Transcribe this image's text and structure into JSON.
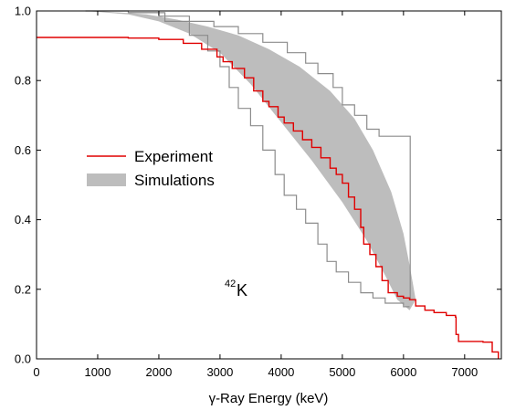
{
  "chart_data": {
    "type": "line",
    "title": "",
    "xlabel": "γ-Ray Energy (keV)",
    "ylabel": "",
    "xlim": [
      0,
      7600
    ],
    "ylim": [
      0,
      1.0
    ],
    "x_ticks": [
      0,
      1000,
      2000,
      3000,
      4000,
      5000,
      6000,
      7000
    ],
    "y_ticks": [
      0.0,
      0.2,
      0.4,
      0.6,
      0.8,
      1.0
    ],
    "x_tick_labels": [
      "0",
      "1000",
      "2000",
      "3000",
      "4000",
      "5000",
      "6000",
      "7000"
    ],
    "y_tick_labels": [
      "0.0",
      "0.2",
      "0.4",
      "0.6",
      "0.8",
      "1.0"
    ],
    "grid": false,
    "legend": {
      "position": "center-left",
      "entries": [
        {
          "label": "Experiment",
          "style": "line",
          "color": "#e00000"
        },
        {
          "label": "Simulations",
          "style": "band",
          "color": "#bdbdbd"
        }
      ]
    },
    "annotation": {
      "mass_number": "42",
      "element": "K",
      "x": 3500,
      "y": 0.2
    },
    "colors": {
      "experiment": "#e00000",
      "band_fill": "#bdbdbd",
      "outer_bounds": "#8c8c8c",
      "axes": "#000000"
    },
    "series": [
      {
        "name": "Experiment",
        "kind": "step",
        "points": [
          [
            0,
            0.924
          ],
          [
            1000,
            0.924
          ],
          [
            1500,
            0.922
          ],
          [
            2000,
            0.918
          ],
          [
            2400,
            0.907
          ],
          [
            2700,
            0.89
          ],
          [
            2950,
            0.868
          ],
          [
            3050,
            0.854
          ],
          [
            3200,
            0.835
          ],
          [
            3400,
            0.808
          ],
          [
            3550,
            0.77
          ],
          [
            3700,
            0.74
          ],
          [
            3800,
            0.725
          ],
          [
            3950,
            0.695
          ],
          [
            4050,
            0.678
          ],
          [
            4200,
            0.655
          ],
          [
            4350,
            0.63
          ],
          [
            4500,
            0.608
          ],
          [
            4650,
            0.578
          ],
          [
            4800,
            0.548
          ],
          [
            4900,
            0.53
          ],
          [
            5000,
            0.505
          ],
          [
            5100,
            0.465
          ],
          [
            5200,
            0.43
          ],
          [
            5300,
            0.378
          ],
          [
            5350,
            0.33
          ],
          [
            5450,
            0.3
          ],
          [
            5550,
            0.265
          ],
          [
            5650,
            0.225
          ],
          [
            5750,
            0.19
          ],
          [
            5900,
            0.18
          ],
          [
            6000,
            0.175
          ],
          [
            6100,
            0.17
          ],
          [
            6200,
            0.152
          ],
          [
            6350,
            0.14
          ],
          [
            6500,
            0.133
          ],
          [
            6700,
            0.125
          ],
          [
            6850,
            0.12
          ],
          [
            6860,
            0.07
          ],
          [
            6900,
            0.05
          ],
          [
            7300,
            0.048
          ],
          [
            7450,
            0.02
          ],
          [
            7550,
            0.0
          ]
        ]
      },
      {
        "name": "Simulations",
        "kind": "band",
        "upper": [
          [
            0,
            1.0
          ],
          [
            1000,
            1.0
          ],
          [
            1800,
            0.99
          ],
          [
            2300,
            0.975
          ],
          [
            2800,
            0.955
          ],
          [
            3300,
            0.93
          ],
          [
            3800,
            0.89
          ],
          [
            4300,
            0.84
          ],
          [
            4800,
            0.77
          ],
          [
            5200,
            0.69
          ],
          [
            5500,
            0.6
          ],
          [
            5800,
            0.48
          ],
          [
            6000,
            0.36
          ],
          [
            6100,
            0.27
          ],
          [
            6150,
            0.22
          ],
          [
            6200,
            0.17
          ]
        ],
        "lower": [
          [
            0,
            1.0
          ],
          [
            800,
            1.0
          ],
          [
            1500,
            0.99
          ],
          [
            2000,
            0.97
          ],
          [
            2500,
            0.935
          ],
          [
            3000,
            0.88
          ],
          [
            3500,
            0.79
          ],
          [
            4000,
            0.68
          ],
          [
            4500,
            0.57
          ],
          [
            5000,
            0.45
          ],
          [
            5400,
            0.34
          ],
          [
            5700,
            0.24
          ],
          [
            5900,
            0.17
          ],
          [
            6100,
            0.14
          ],
          [
            6200,
            0.17
          ]
        ]
      },
      {
        "kind": "outer-bound-upper",
        "points": [
          [
            800,
            1.0
          ],
          [
            1500,
            0.995
          ],
          [
            2000,
            0.985
          ],
          [
            2500,
            0.97
          ],
          [
            2900,
            0.955
          ],
          [
            3300,
            0.935
          ],
          [
            3700,
            0.91
          ],
          [
            4100,
            0.88
          ],
          [
            4400,
            0.85
          ],
          [
            4600,
            0.82
          ],
          [
            4850,
            0.78
          ],
          [
            5000,
            0.73
          ],
          [
            5200,
            0.7
          ],
          [
            5400,
            0.66
          ],
          [
            5600,
            0.64
          ],
          [
            5800,
            0.64
          ],
          [
            6100,
            0.64
          ],
          [
            6110,
            0.17
          ]
        ]
      },
      {
        "kind": "outer-bound-lower",
        "points": [
          [
            1500,
            0.995
          ],
          [
            2100,
            0.97
          ],
          [
            2500,
            0.93
          ],
          [
            2800,
            0.885
          ],
          [
            3000,
            0.84
          ],
          [
            3150,
            0.78
          ],
          [
            3300,
            0.72
          ],
          [
            3500,
            0.67
          ],
          [
            3700,
            0.6
          ],
          [
            3900,
            0.53
          ],
          [
            4050,
            0.47
          ],
          [
            4250,
            0.43
          ],
          [
            4400,
            0.39
          ],
          [
            4600,
            0.33
          ],
          [
            4750,
            0.28
          ],
          [
            4900,
            0.25
          ],
          [
            5100,
            0.22
          ],
          [
            5300,
            0.19
          ],
          [
            5500,
            0.175
          ],
          [
            5700,
            0.16
          ],
          [
            6000,
            0.15
          ],
          [
            6100,
            0.15
          ]
        ]
      }
    ]
  }
}
